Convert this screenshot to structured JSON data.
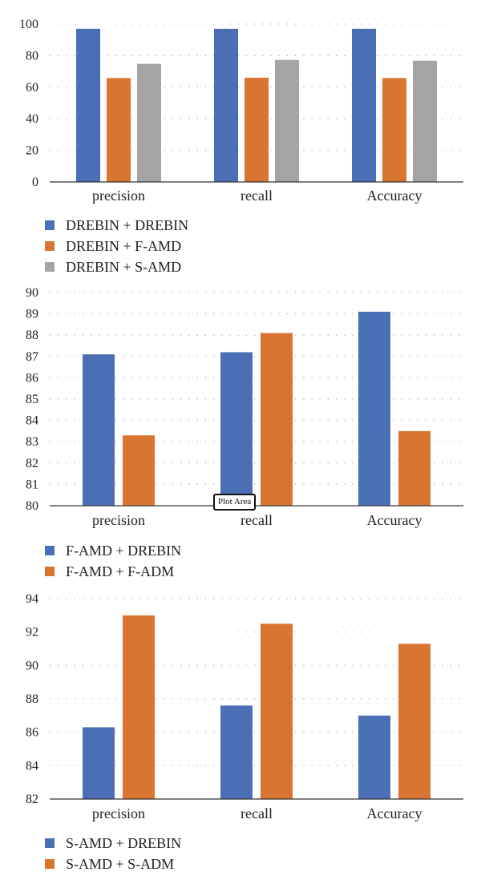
{
  "chart_data": [
    {
      "type": "bar",
      "categories": [
        "precision",
        "recall",
        "Accuracy"
      ],
      "series": [
        {
          "name": "DREBIN + DREBIN",
          "values": [
            97,
            97,
            97
          ],
          "color": "#4a6fb5"
        },
        {
          "name": "DREBIN + F-AMD",
          "values": [
            65.8,
            66,
            65.8
          ],
          "color": "#d97530"
        },
        {
          "name": "DREBIN + S-AMD",
          "values": [
            74.8,
            77.3,
            76.8
          ],
          "color": "#a5a5a5"
        }
      ],
      "yticks": [
        "0",
        "20",
        "40",
        "60",
        "80",
        "100"
      ],
      "ylim": [
        0,
        100
      ],
      "grid": "dotted-horizontal",
      "legend_position": "bottom-left"
    },
    {
      "type": "bar",
      "categories": [
        "precision",
        "recall",
        "Accuracy"
      ],
      "series": [
        {
          "name": "F-AMD + DREBIN",
          "values": [
            87.1,
            87.2,
            89.1
          ],
          "color": "#4a6fb5"
        },
        {
          "name": "F-AMD + F-ADM",
          "values": [
            83.3,
            88.1,
            83.5
          ],
          "color": "#d97530"
        }
      ],
      "yticks": [
        "80",
        "81",
        "82",
        "83",
        "84",
        "85",
        "86",
        "87",
        "88",
        "89",
        "90"
      ],
      "ylim": [
        80,
        90
      ],
      "grid": "dotted-horizontal",
      "legend_position": "bottom-left",
      "annotation": "Plot Area"
    },
    {
      "type": "bar",
      "categories": [
        "precision",
        "recall",
        "Accuracy"
      ],
      "series": [
        {
          "name": "S-AMD + DREBIN",
          "values": [
            86.3,
            87.6,
            87
          ],
          "color": "#4a6fb5"
        },
        {
          "name": "S-AMD + S-ADM",
          "values": [
            93,
            92.5,
            91.3
          ],
          "color": "#d97530"
        }
      ],
      "yticks": [
        "82",
        "84",
        "86",
        "88",
        "90",
        "92",
        "94"
      ],
      "ylim": [
        82,
        94
      ],
      "grid": "dotted-horizontal",
      "legend_position": "bottom-left"
    }
  ]
}
